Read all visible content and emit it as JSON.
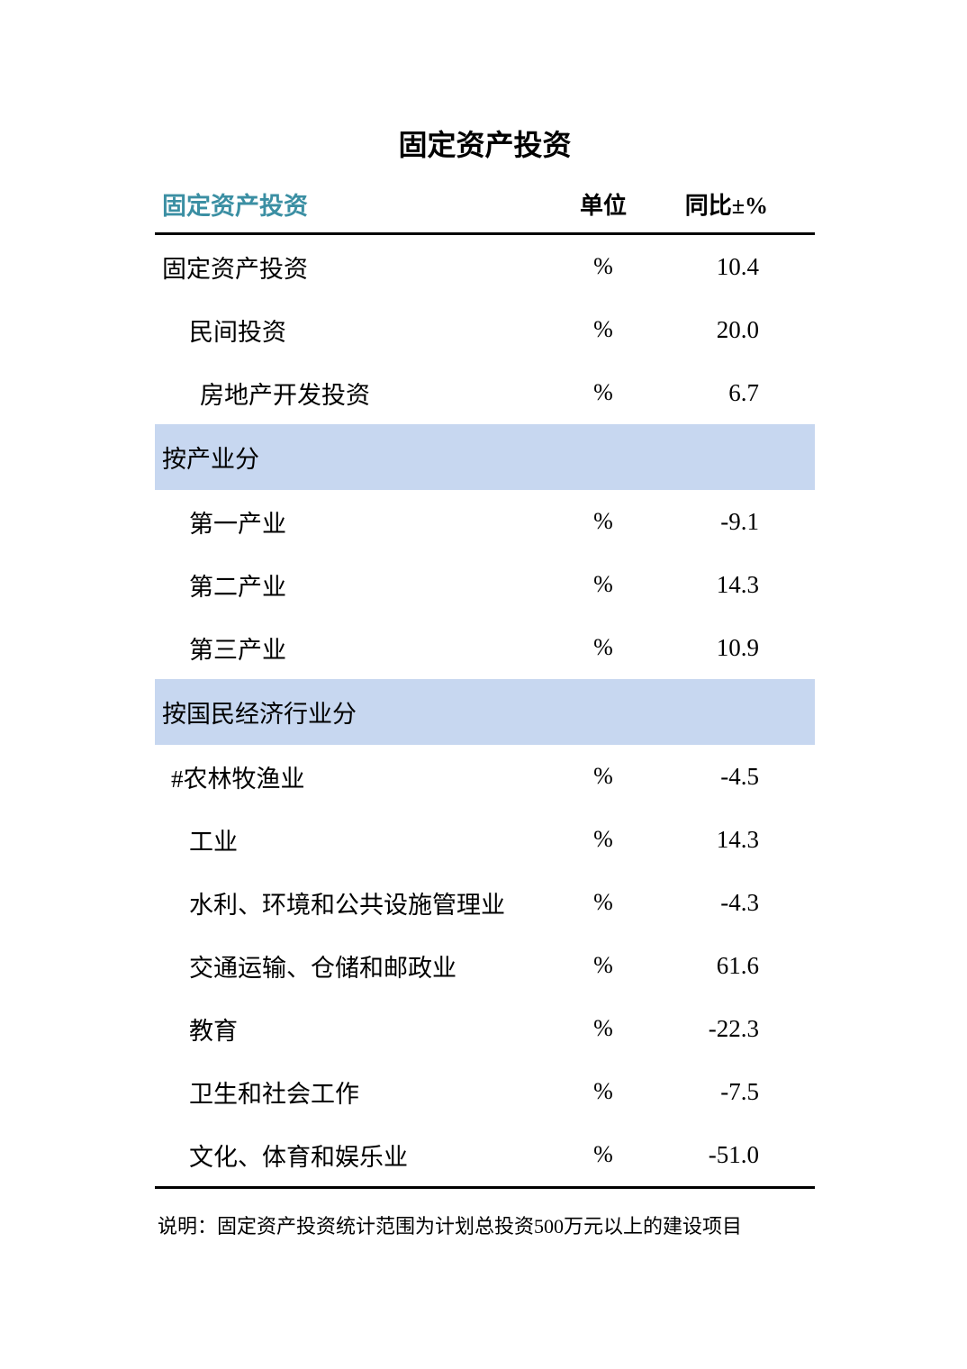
{
  "page": {
    "title": "固定资产投资",
    "note": "说明：固定资产投资统计范围为计划总投资500万元以上的建设项目"
  },
  "table": {
    "header": {
      "name": "固定资产投资",
      "unit": "单位",
      "yoy": "同比±%"
    },
    "rows": [
      {
        "type": "data",
        "label": "固定资产投资",
        "indent": "0",
        "unit": "%",
        "value": "10.4"
      },
      {
        "type": "data",
        "label": "民间投资",
        "indent": "1",
        "unit": "%",
        "value": "20.0"
      },
      {
        "type": "data",
        "label": "房地产开发投资",
        "indent": "2",
        "unit": "%",
        "value": "6.7"
      },
      {
        "type": "section",
        "label": "按产业分"
      },
      {
        "type": "data",
        "label": "第一产业",
        "indent": "1",
        "unit": "%",
        "value": "-9.1"
      },
      {
        "type": "data",
        "label": "第二产业",
        "indent": "1",
        "unit": "%",
        "value": "14.3"
      },
      {
        "type": "data",
        "label": "第三产业",
        "indent": "1",
        "unit": "%",
        "value": "10.9"
      },
      {
        "type": "section",
        "label": "按国民经济行业分"
      },
      {
        "type": "data",
        "label": "#农林牧渔业",
        "indent": "hash",
        "unit": "%",
        "value": "-4.5"
      },
      {
        "type": "data",
        "label": "工业",
        "indent": "1",
        "unit": "%",
        "value": "14.3"
      },
      {
        "type": "data",
        "label": "水利、环境和公共设施管理业",
        "indent": "1",
        "unit": "%",
        "value": "-4.3"
      },
      {
        "type": "data",
        "label": "交通运输、仓储和邮政业",
        "indent": "1",
        "unit": "%",
        "value": "61.6"
      },
      {
        "type": "data",
        "label": "教育",
        "indent": "1",
        "unit": "%",
        "value": "-22.3"
      },
      {
        "type": "data",
        "label": "卫生和社会工作",
        "indent": "1",
        "unit": "%",
        "value": "-7.5"
      },
      {
        "type": "data",
        "label": "文化、体育和娱乐业",
        "indent": "1",
        "unit": "%",
        "value": "-51.0"
      }
    ]
  },
  "colors": {
    "accent_teal": "#3B8FA3",
    "section_bg": "#C7D7F0"
  }
}
